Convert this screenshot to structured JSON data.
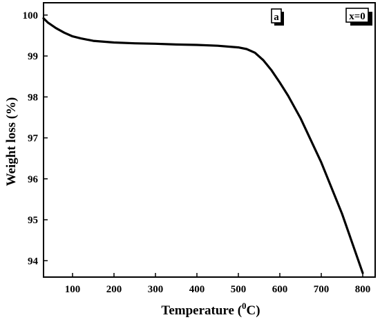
{
  "chart_data": {
    "type": "line",
    "xlabel": "Temperature",
    "xlabel_unit_prefix": "(",
    "xlabel_unit_sup": "0",
    "xlabel_unit_suffix": "C)",
    "ylabel": "Weight loss (%)",
    "xlim": [
      30,
      830
    ],
    "ylim": [
      93.6,
      100.3
    ],
    "xticks": [
      100,
      200,
      300,
      400,
      500,
      600,
      700,
      800
    ],
    "yticks": [
      94,
      95,
      96,
      97,
      98,
      99,
      100
    ],
    "grid": false,
    "annotations": {
      "panel": "a",
      "legend": "x=0"
    },
    "series": [
      {
        "x": [
          30,
          40,
          60,
          80,
          100,
          120,
          150,
          200,
          250,
          300,
          350,
          400,
          450,
          500,
          520,
          540,
          560,
          580,
          600,
          620,
          650,
          700,
          750,
          800
        ],
        "y": [
          99.92,
          99.82,
          99.68,
          99.57,
          99.48,
          99.43,
          99.37,
          99.33,
          99.31,
          99.3,
          99.28,
          99.27,
          99.25,
          99.21,
          99.17,
          99.08,
          98.9,
          98.65,
          98.35,
          98.03,
          97.48,
          96.4,
          95.15,
          93.7
        ]
      }
    ],
    "line_color": "#000000"
  }
}
